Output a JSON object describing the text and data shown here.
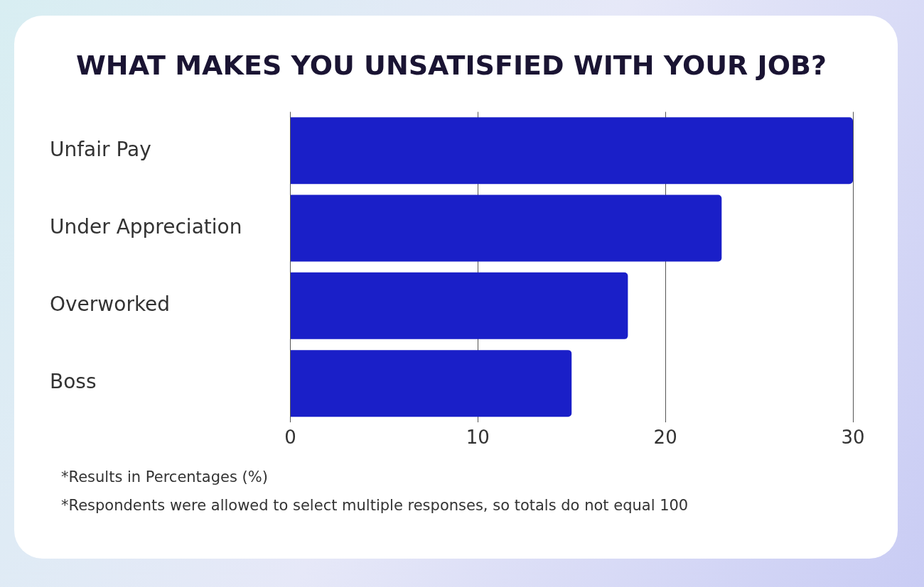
{
  "chart_data": {
    "type": "bar",
    "orientation": "horizontal",
    "title": "WHAT MAKES YOU UNSATISFIED WITH YOUR JOB?",
    "categories": [
      "Unfair Pay",
      "Under Appreciation",
      "Overworked",
      "Boss"
    ],
    "values": [
      30,
      23,
      18,
      15
    ],
    "color": "#1a1fc8",
    "xlim": [
      0,
      30
    ],
    "xticks": [
      0,
      10,
      20,
      30
    ],
    "grid": "x",
    "annotations": [
      "*Results in Percentages (%)",
      "*Respondents were allowed to select multiple responses, so totals do not equal 100"
    ]
  }
}
